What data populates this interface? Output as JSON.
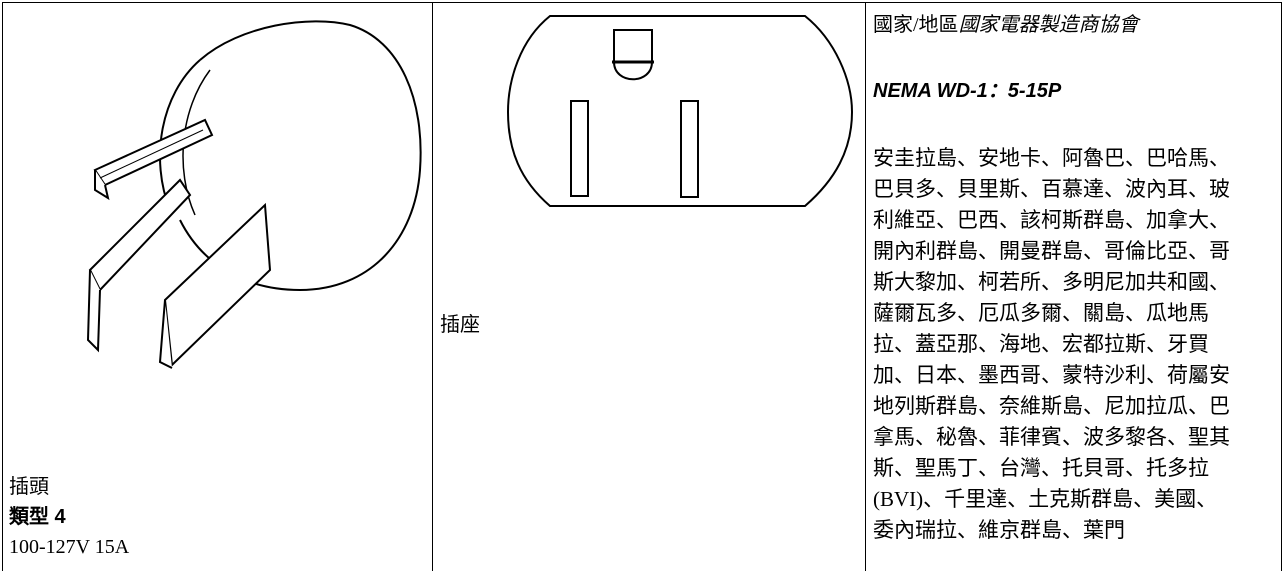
{
  "table": {
    "plug": {
      "label": "插頭",
      "type": "類型 4",
      "rating": "100-127V 15A"
    },
    "receptacle": {
      "label": "插座"
    },
    "standard": {
      "region": "國家/地區",
      "org": "國家電器製造商協會",
      "code": "NEMA WD-1：5-15P",
      "countries": [
        "安圭拉島、安地卡、阿魯巴、巴哈馬、",
        "巴貝多、貝里斯、百慕達、波內耳、玻",
        "利維亞、巴西、該柯斯群島、加拿大、",
        "開內利群島、開曼群島、哥倫比亞、哥",
        "斯大黎加、柯若所、多明尼加共和國、",
        "薩爾瓦多、厄瓜多爾、關島、瓜地馬",
        "拉、蓋亞那、海地、宏都拉斯、牙買",
        "加、日本、墨西哥、蒙特沙利、荷屬安",
        "地列斯群島、奈維斯島、尼加拉瓜、巴",
        "拿馬、秘魯、菲律賓、波多黎各、聖其",
        "斯、聖馬丁、台灣、托貝哥、托多拉",
        "(BVI)、千里達、土克斯群島、美國、",
        "委內瑞拉、維京群島、葉門"
      ]
    }
  }
}
